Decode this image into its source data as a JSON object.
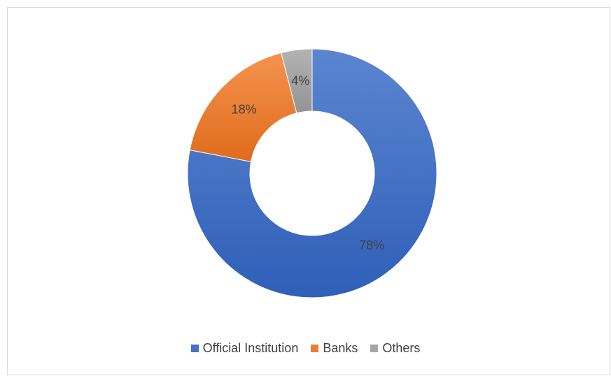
{
  "chart_data": {
    "type": "pie",
    "subtype": "doughnut",
    "title": "",
    "categories": [
      "Official Institution",
      "Banks",
      "Others"
    ],
    "values": [
      78,
      18,
      4
    ],
    "labels": [
      "78%",
      "18%",
      "4%"
    ],
    "colors": [
      "#4472c4",
      "#ed7d31",
      "#a5a5a5"
    ],
    "legend_position": "bottom"
  }
}
